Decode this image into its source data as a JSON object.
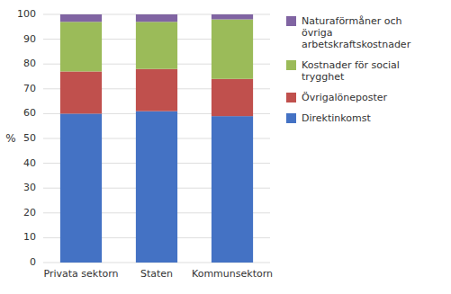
{
  "chart_data": {
    "type": "bar",
    "stacked": true,
    "categories": [
      "Privata sektorn",
      "Staten",
      "Kommunsektorn"
    ],
    "series": [
      {
        "name": "Direktinkomst",
        "color": "#4472C4",
        "values": [
          60,
          61,
          59
        ]
      },
      {
        "name": "Övrigalöneposter",
        "color": "#C0504D",
        "values": [
          17,
          17,
          15
        ]
      },
      {
        "name": "Kostnader för social\ntrygghet",
        "color": "#9BBB59",
        "values": [
          20,
          19,
          24
        ]
      },
      {
        "name": "Naturaförmåner och\növriga\narbetskraftskostnader",
        "color": "#8064A2",
        "values": [
          3,
          3,
          2
        ]
      }
    ],
    "y_label": "%",
    "ylim": [
      0,
      100
    ],
    "yticks": [
      0,
      10,
      20,
      30,
      40,
      50,
      60,
      70,
      80,
      90,
      100
    ],
    "grid": true,
    "legend": "right"
  }
}
